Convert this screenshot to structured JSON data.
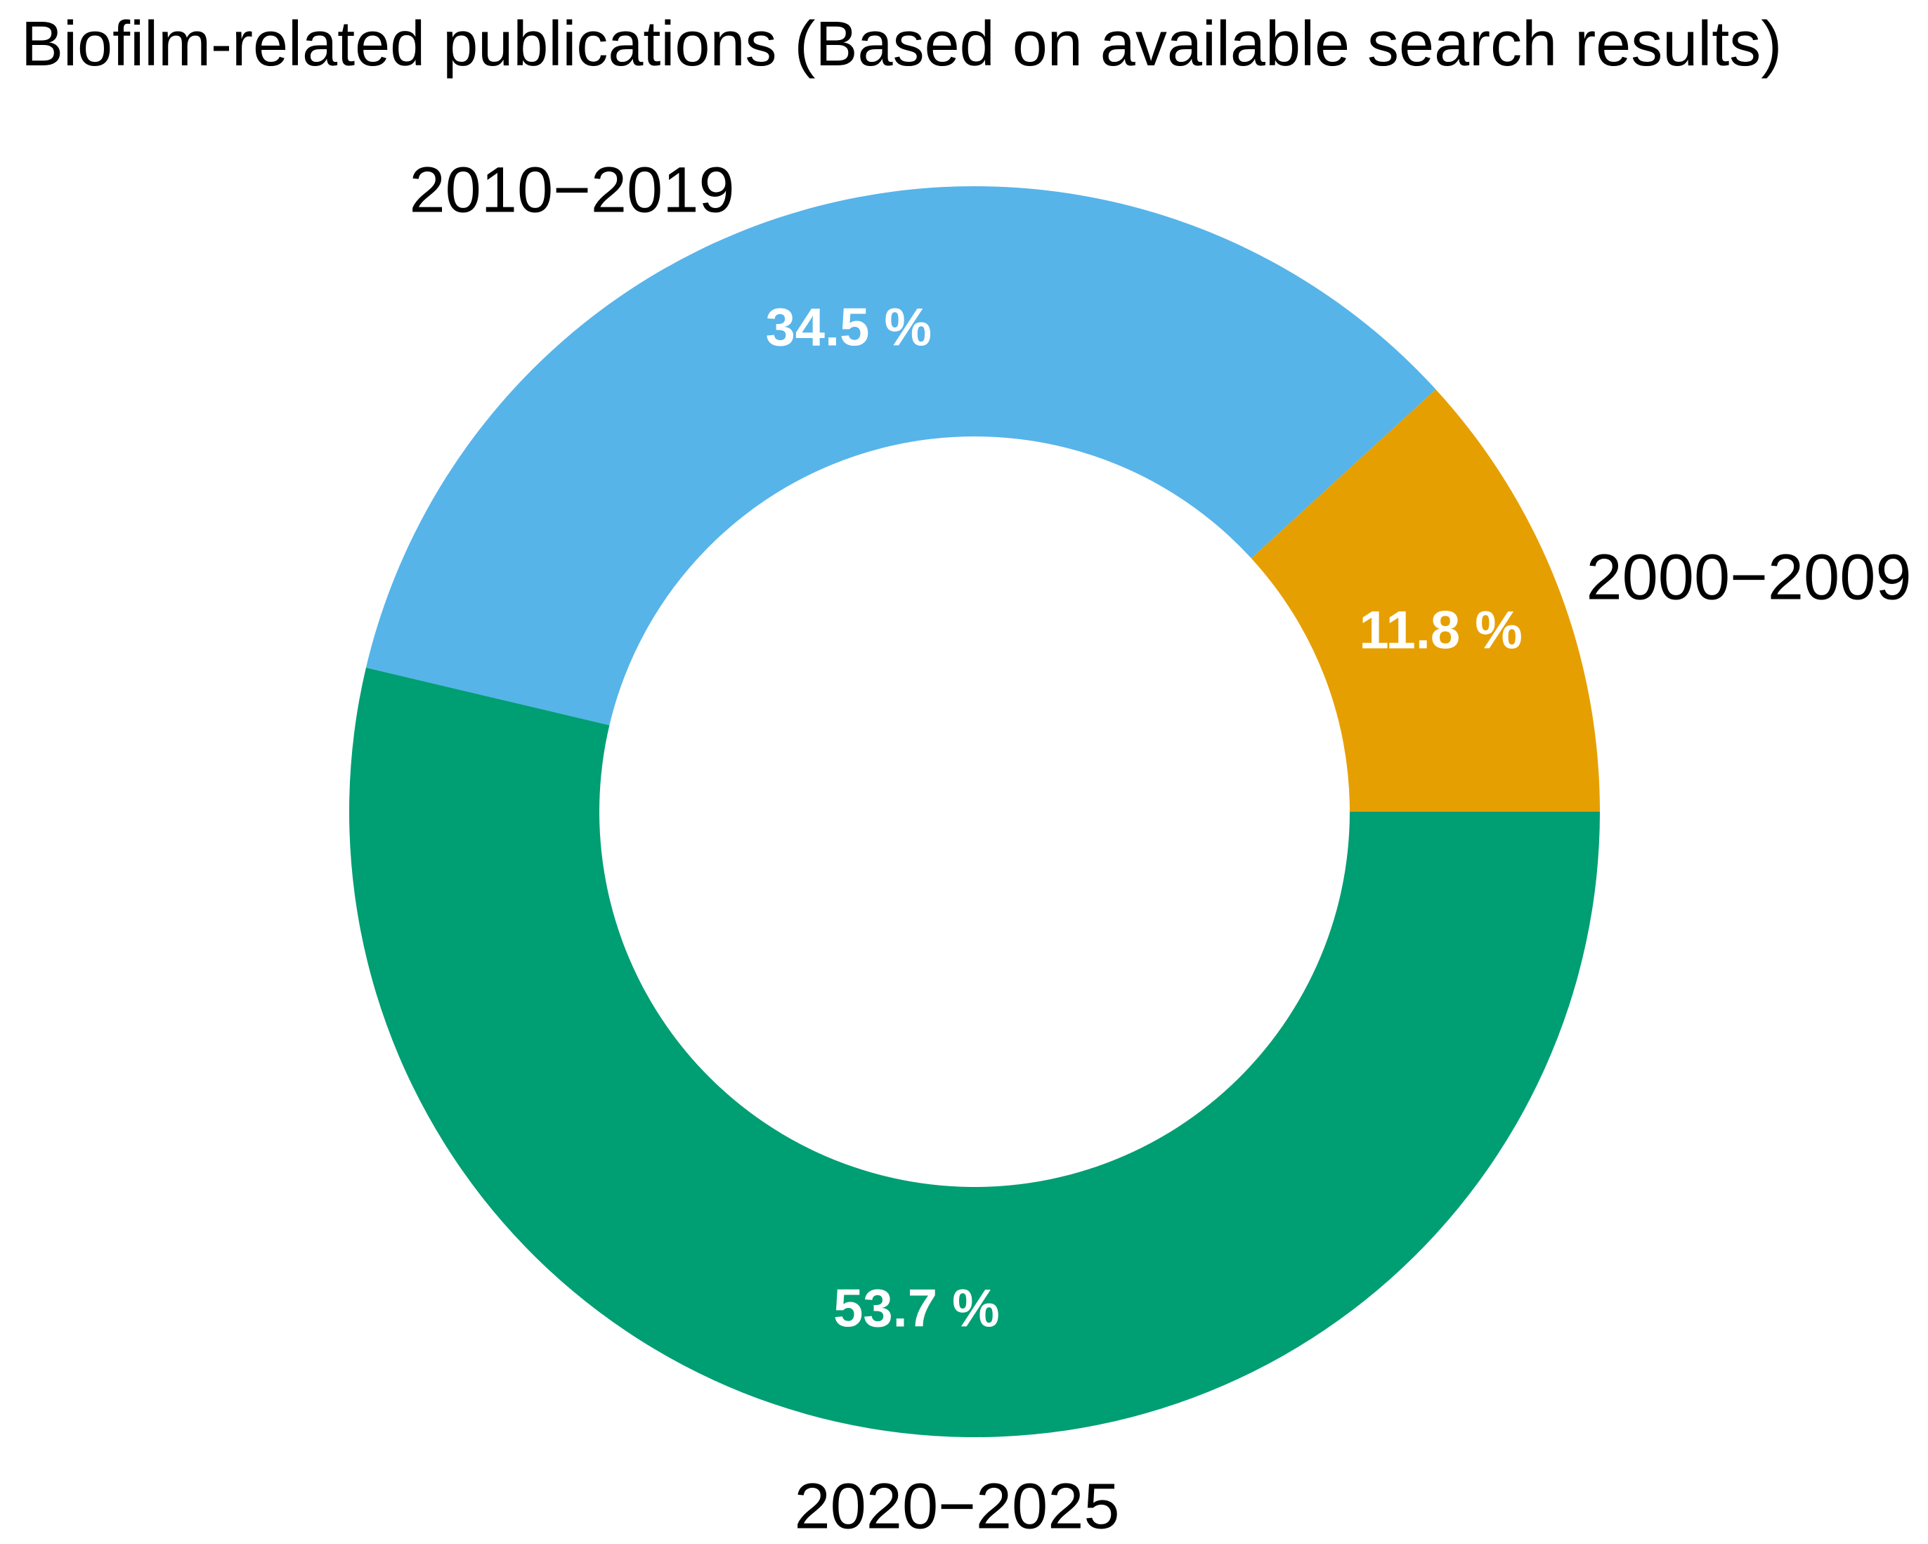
{
  "chart_data": {
    "type": "pie",
    "subtype": "donut",
    "title": "Biofilm-related publications (Based on available search results)",
    "categories": [
      "2000−2009",
      "2010−2019",
      "2020−2025"
    ],
    "values": [
      11.8,
      34.5,
      53.7
    ],
    "labels": [
      "11.8 %",
      "34.5 %",
      "53.7 %"
    ],
    "colors": [
      "#E69F00",
      "#56B4E9",
      "#009E73"
    ],
    "start_angle_deg": 0,
    "direction": "counterclockwise",
    "donut_hole_ratio": 0.6,
    "legend": "none",
    "category_label_positions": [
      "outside-right",
      "outside-top-left",
      "outside-bottom"
    ]
  }
}
